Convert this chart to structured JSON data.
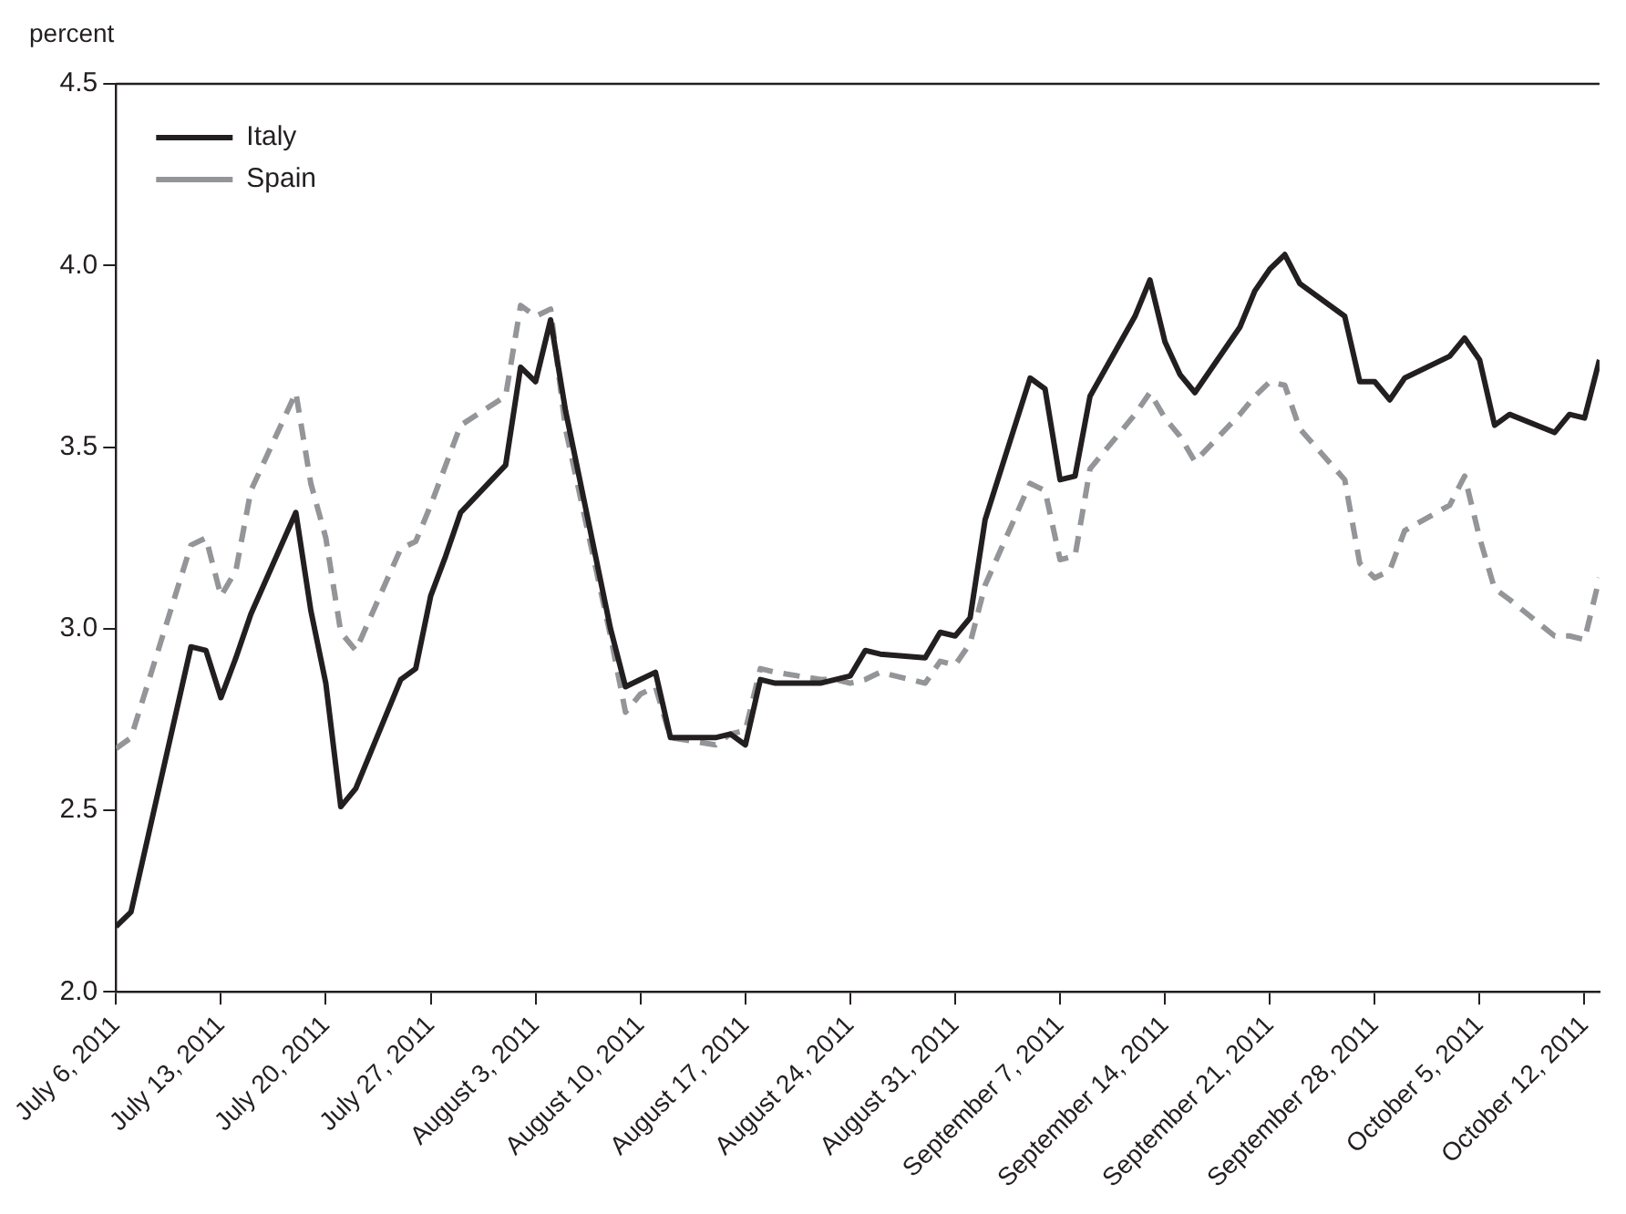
{
  "chart_data": {
    "type": "line",
    "ylabel": "percent",
    "legend": "top left",
    "grid": false,
    "marker": "none",
    "x": [
      "2011-07-06",
      "2011-07-07",
      "2011-07-11",
      "2011-07-12",
      "2011-07-13",
      "2011-07-14",
      "2011-07-15",
      "2011-07-18",
      "2011-07-19",
      "2011-07-20",
      "2011-07-21",
      "2011-07-22",
      "2011-07-25",
      "2011-07-26",
      "2011-07-27",
      "2011-07-28",
      "2011-07-29",
      "2011-08-01",
      "2011-08-02",
      "2011-08-03",
      "2011-08-04",
      "2011-08-05",
      "2011-08-08",
      "2011-08-09",
      "2011-08-10",
      "2011-08-11",
      "2011-08-12",
      "2011-08-15",
      "2011-08-16",
      "2011-08-17",
      "2011-08-18",
      "2011-08-19",
      "2011-08-22",
      "2011-08-23",
      "2011-08-24",
      "2011-08-25",
      "2011-08-26",
      "2011-08-29",
      "2011-08-30",
      "2011-08-31",
      "2011-09-01",
      "2011-09-02",
      "2011-09-05",
      "2011-09-06",
      "2011-09-07",
      "2011-09-08",
      "2011-09-09",
      "2011-09-12",
      "2011-09-13",
      "2011-09-14",
      "2011-09-15",
      "2011-09-16",
      "2011-09-19",
      "2011-09-20",
      "2011-09-21",
      "2011-09-22",
      "2011-09-23",
      "2011-09-26",
      "2011-09-27",
      "2011-09-28",
      "2011-09-29",
      "2011-09-30",
      "2011-10-03",
      "2011-10-04",
      "2011-10-05",
      "2011-10-06",
      "2011-10-07",
      "2011-10-10",
      "2011-10-11",
      "2011-10-12",
      "2011-10-13"
    ],
    "series": [
      {
        "name": "Italy",
        "color": "#231f20",
        "line_style": "solid",
        "values": [
          2.18,
          2.22,
          2.95,
          2.94,
          2.81,
          2.92,
          3.04,
          3.32,
          3.05,
          2.85,
          2.51,
          2.56,
          2.86,
          2.89,
          3.09,
          3.2,
          3.32,
          3.45,
          3.72,
          3.68,
          3.85,
          3.6,
          3.0,
          2.84,
          2.86,
          2.88,
          2.7,
          2.7,
          2.71,
          2.68,
          2.86,
          2.85,
          2.85,
          2.86,
          2.87,
          2.94,
          2.93,
          2.92,
          2.99,
          2.98,
          3.03,
          3.3,
          3.69,
          3.66,
          3.41,
          3.42,
          3.64,
          3.86,
          3.96,
          3.79,
          3.7,
          3.65,
          3.83,
          3.93,
          3.99,
          4.03,
          3.95,
          3.86,
          3.68,
          3.68,
          3.63,
          3.69,
          3.75,
          3.8,
          3.74,
          3.56,
          3.59,
          3.54,
          3.59,
          3.58,
          3.74
        ]
      },
      {
        "name": "Spain",
        "color": "#939598",
        "line_style": "dashed",
        "values": [
          2.67,
          2.7,
          3.23,
          3.25,
          3.09,
          3.16,
          3.38,
          3.65,
          3.4,
          3.25,
          2.99,
          2.94,
          3.22,
          3.24,
          3.34,
          3.45,
          3.56,
          3.64,
          3.89,
          3.86,
          3.88,
          3.55,
          2.98,
          2.77,
          2.82,
          2.84,
          2.7,
          2.68,
          2.71,
          2.72,
          2.89,
          2.88,
          2.86,
          2.86,
          2.85,
          2.86,
          2.88,
          2.85,
          2.91,
          2.9,
          2.96,
          3.12,
          3.4,
          3.38,
          3.19,
          3.2,
          3.44,
          3.59,
          3.65,
          3.58,
          3.53,
          3.46,
          3.59,
          3.64,
          3.68,
          3.67,
          3.55,
          3.41,
          3.18,
          3.14,
          3.16,
          3.27,
          3.34,
          3.42,
          3.25,
          3.11,
          3.08,
          2.98,
          2.98,
          2.97,
          3.14
        ]
      }
    ],
    "xlim": [
      "2011-07-06",
      "2011-10-13"
    ],
    "xticks": [
      {
        "value": "2011-07-06",
        "label": "July 6, 2011"
      },
      {
        "value": "2011-07-13",
        "label": "July 13, 2011"
      },
      {
        "value": "2011-07-20",
        "label": "July 20, 2011"
      },
      {
        "value": "2011-07-27",
        "label": "July 27, 2011"
      },
      {
        "value": "2011-08-03",
        "label": "August 3, 2011"
      },
      {
        "value": "2011-08-10",
        "label": "August 10, 2011"
      },
      {
        "value": "2011-08-17",
        "label": "August 17, 2011"
      },
      {
        "value": "2011-08-24",
        "label": "August 24, 2011"
      },
      {
        "value": "2011-08-31",
        "label": "August 31, 2011"
      },
      {
        "value": "2011-09-07",
        "label": "September 7, 2011"
      },
      {
        "value": "2011-09-14",
        "label": "September 14, 2011"
      },
      {
        "value": "2011-09-21",
        "label": "September 21, 2011"
      },
      {
        "value": "2011-09-28",
        "label": "September 28, 2011"
      },
      {
        "value": "2011-10-05",
        "label": "October 5, 2011"
      },
      {
        "value": "2011-10-12",
        "label": "October 12, 2011"
      }
    ],
    "ylim": [
      2.0,
      4.5
    ],
    "yticks": [
      {
        "value": 2.0,
        "label": "2.0"
      },
      {
        "value": 2.5,
        "label": "2.5"
      },
      {
        "value": 3.0,
        "label": "3.0"
      },
      {
        "value": 3.5,
        "label": "3.5"
      },
      {
        "value": 4.0,
        "label": "4.0"
      },
      {
        "value": 4.5,
        "label": "4.5"
      }
    ]
  }
}
